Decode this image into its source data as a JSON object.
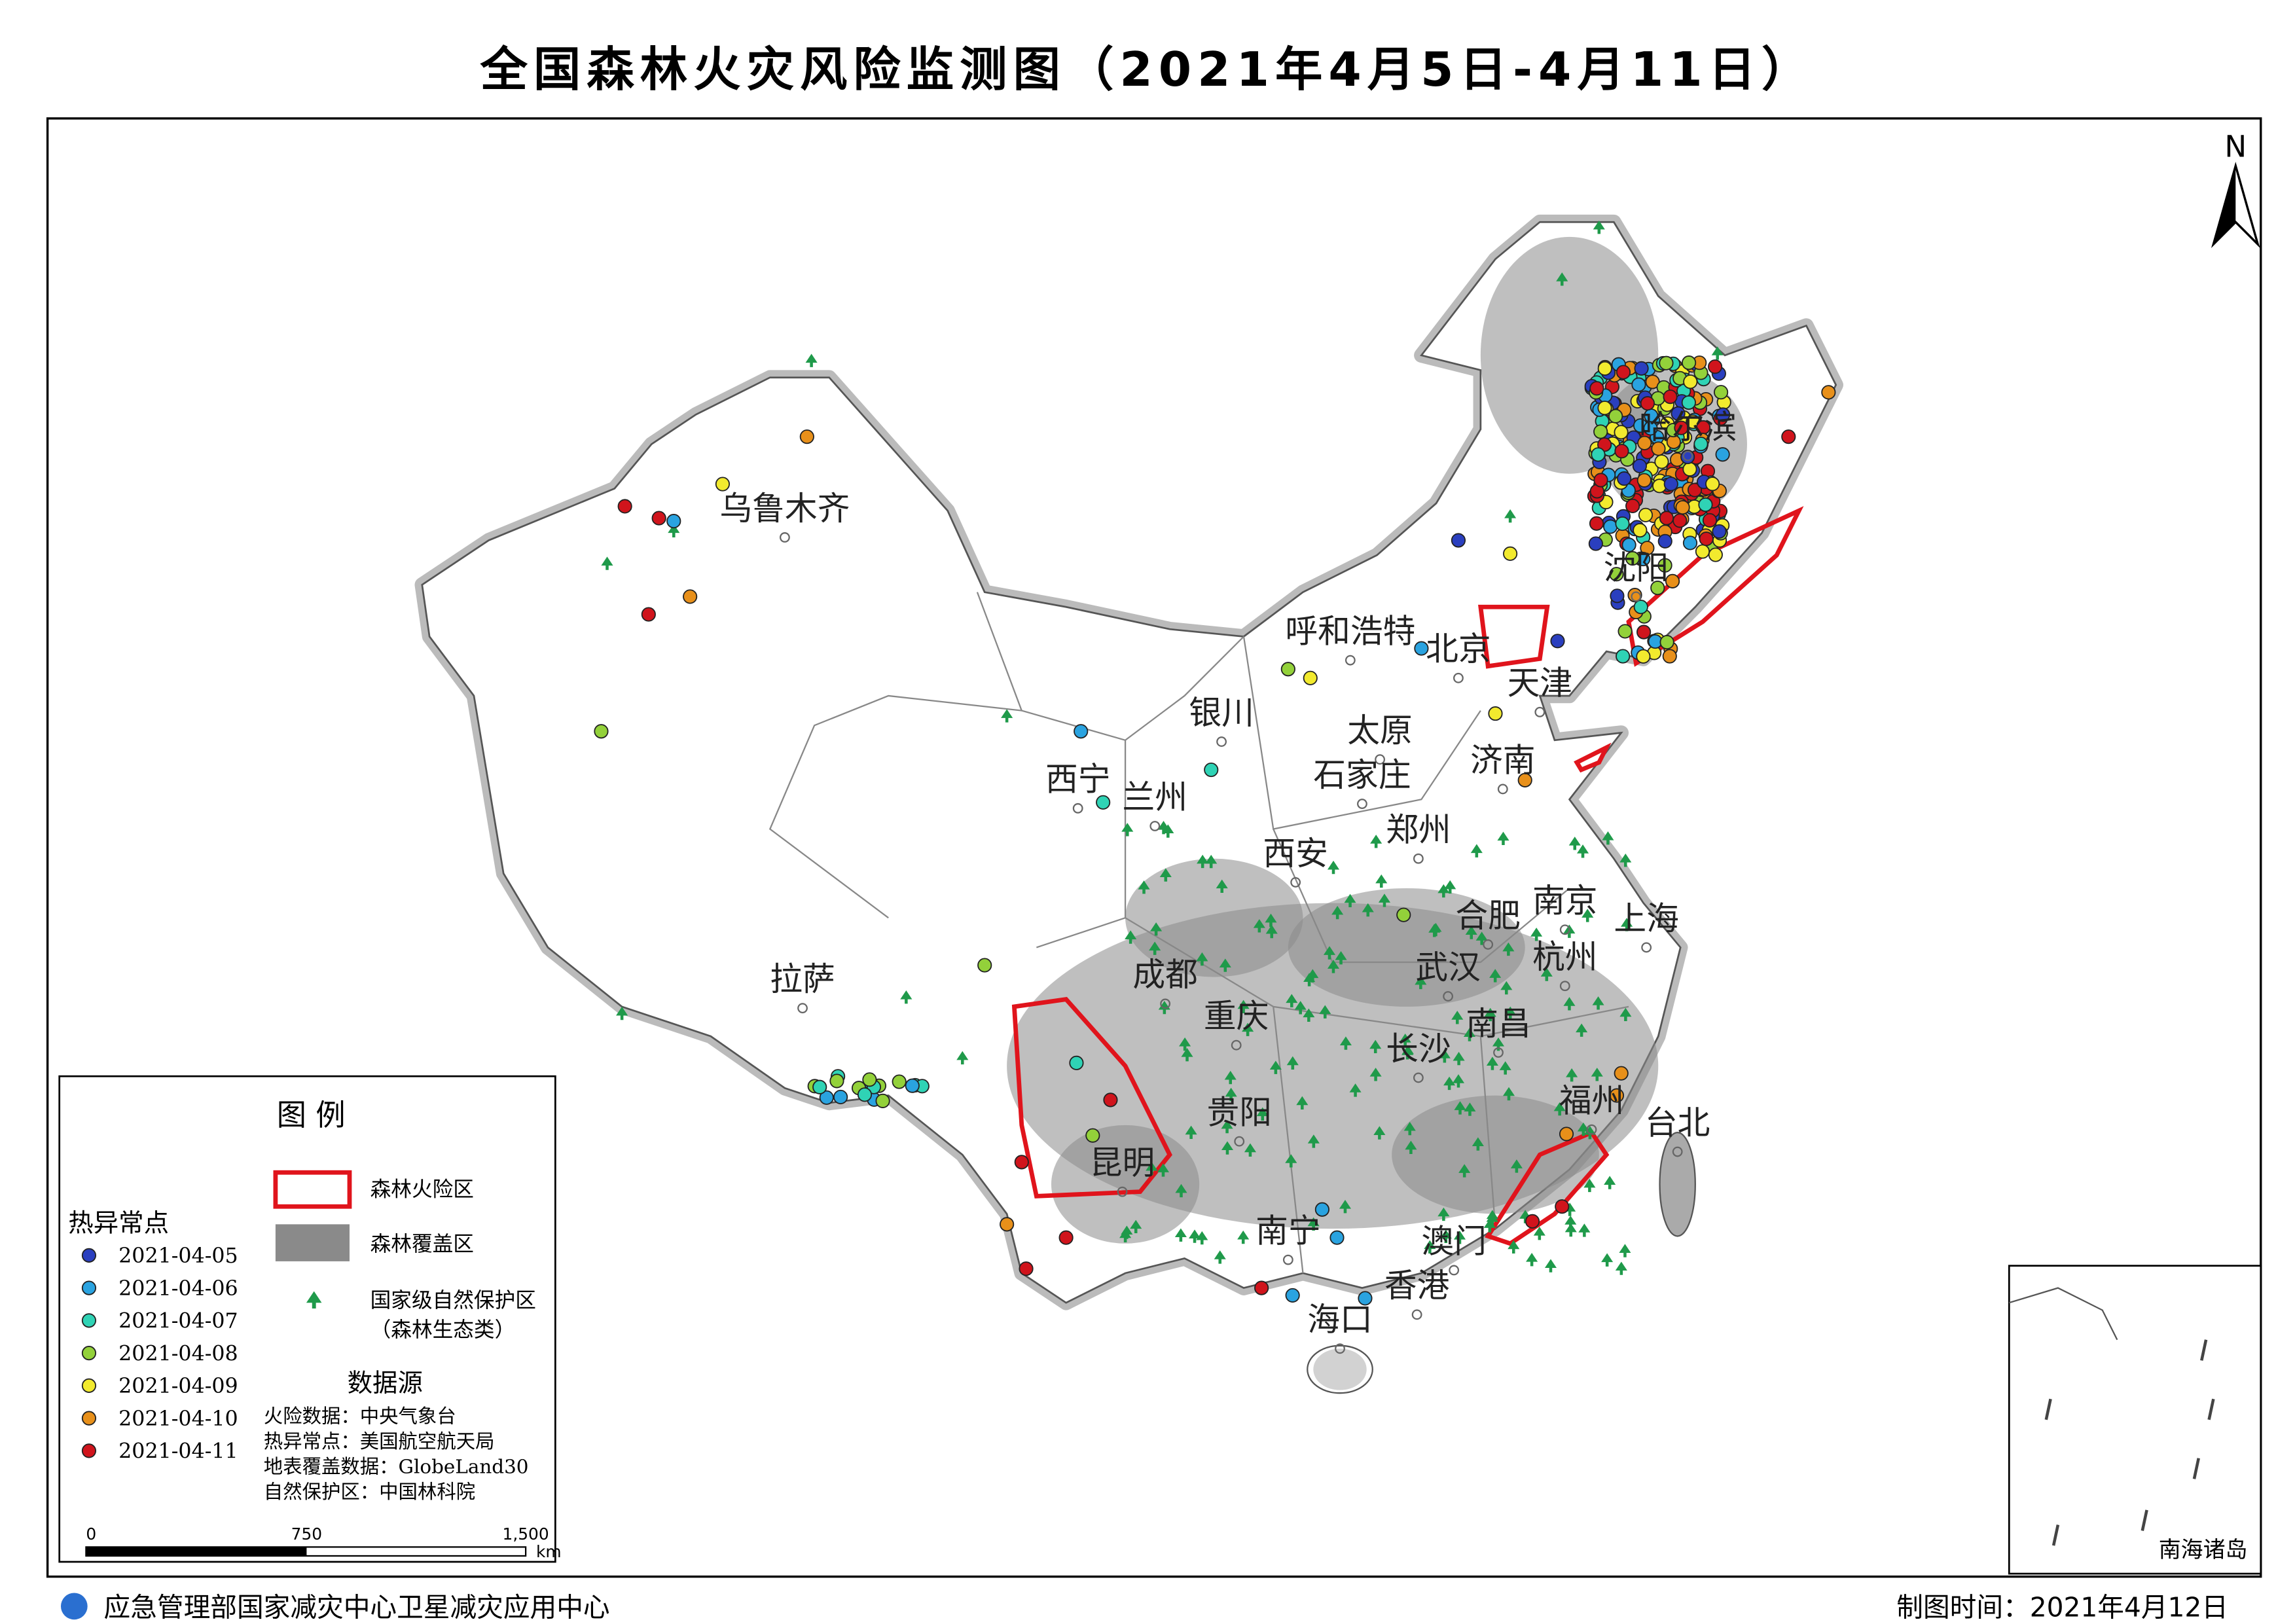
{
  "title": "全国森林火灾风险监测图（2021年4月5日-4月11日）",
  "north": "N",
  "cities": [
    "乌鲁木齐",
    "呼和浩特",
    "北京",
    "天津",
    "银川",
    "太原",
    "石家庄",
    "济南",
    "西宁",
    "兰州",
    "郑州",
    "西安",
    "合肥",
    "南京",
    "上海",
    "成都",
    "武汉",
    "杭州",
    "拉萨",
    "重庆",
    "南昌",
    "长沙",
    "福州",
    "贵阳",
    "台北",
    "昆明",
    "南宁",
    "澳门",
    "香港",
    "海口",
    "哈尔滨",
    "沈阳"
  ],
  "legend": {
    "title": "图 例",
    "hotspot_title": "热异常点",
    "hotspot_dates": [
      {
        "label": "2021-04-05",
        "color": "#2a3fbf"
      },
      {
        "label": "2021-04-06",
        "color": "#2aa3e0"
      },
      {
        "label": "2021-04-07",
        "color": "#2fd3b5"
      },
      {
        "label": "2021-04-08",
        "color": "#93d13a"
      },
      {
        "label": "2021-04-09",
        "color": "#f2ea2e"
      },
      {
        "label": "2021-04-10",
        "color": "#e8901a"
      },
      {
        "label": "2021-04-11",
        "color": "#d0141c"
      }
    ],
    "risk_zone": "森林火险区",
    "risk_color": "#e0141c",
    "forest_cover": "森林覆盖区",
    "forest_color": "#8a8a8a",
    "reserve": [
      "国家级自然保护区",
      "（森林生态类）"
    ],
    "reserve_color": "#1f9a4a",
    "source_title": "数据源",
    "sources": [
      "火险数据：中央气象台",
      "热异常点：美国航空航天局",
      "地表覆盖数据：GlobeLand30",
      "自然保护区：中国林科院"
    ]
  },
  "scale_bar": {
    "labels": [
      "0",
      "750",
      "1,500"
    ],
    "unit": "km"
  },
  "inset_label": "南海诸岛",
  "footer": {
    "agency": "应急管理部国家减灾中心卫星减灾应用中心",
    "date": "制图时间：2021年4月12日"
  }
}
